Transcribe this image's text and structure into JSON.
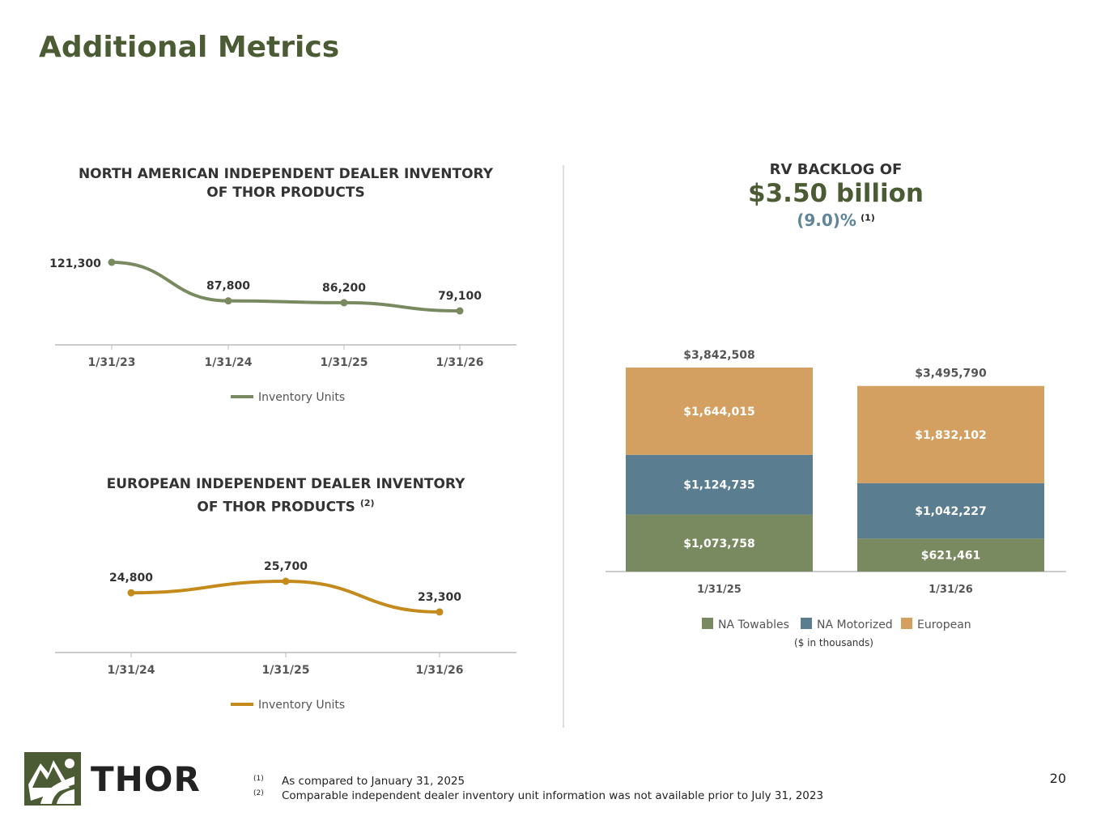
{
  "title": "Additional Metrics",
  "page_number": "20",
  "logo_text": "THOR",
  "backlog": {
    "heading": "RV BACKLOG OF",
    "amount": "$3.50 billion",
    "change": "(9.0)%",
    "change_note": "(1)",
    "units_note": "($ in thousands)"
  },
  "footnotes": [
    {
      "mark": "(1)",
      "text": "As compared to January 31, 2025"
    },
    {
      "mark": "(2)",
      "text": "Comparable independent dealer inventory unit information was not available prior to July 31, 2023"
    }
  ],
  "colors": {
    "na_line": "#7a8a60",
    "eu_line": "#c48a1c",
    "towables": "#7a8a60",
    "motorized": "#5a7d8f",
    "european": "#d4a062",
    "title": "#4b5b33"
  },
  "chart_data": [
    {
      "type": "line",
      "title_line1": "NORTH AMERICAN INDEPENDENT DEALER INVENTORY",
      "title_line2": "OF THOR PRODUCTS",
      "categories": [
        "1/31/23",
        "1/31/24",
        "1/31/25",
        "1/31/26"
      ],
      "values": [
        121300,
        87800,
        86200,
        79100
      ],
      "labels": [
        "121,300",
        "87,800",
        "86,200",
        "79,100"
      ],
      "legend": "Inventory Units"
    },
    {
      "type": "line",
      "title_line1": "EUROPEAN INDEPENDENT DEALER INVENTORY",
      "title_line2": "OF THOR PRODUCTS",
      "title_note": "(2)",
      "categories": [
        "1/31/24",
        "1/31/25",
        "1/31/26"
      ],
      "values": [
        24800,
        25700,
        23300
      ],
      "labels": [
        "24,800",
        "25,700",
        "23,300"
      ],
      "legend": "Inventory Units"
    },
    {
      "type": "bar",
      "stacked": true,
      "categories": [
        "1/31/25",
        "1/31/26"
      ],
      "series": [
        {
          "name": "NA Towables",
          "values": [
            1073758,
            621461
          ],
          "labels": [
            "$1,073,758",
            "$621,461"
          ]
        },
        {
          "name": "NA Motorized",
          "values": [
            1124735,
            1042227
          ],
          "labels": [
            "$1,124,735",
            "$1,042,227"
          ]
        },
        {
          "name": "European",
          "values": [
            1644015,
            1832102
          ],
          "labels": [
            "$1,644,015",
            "$1,832,102"
          ]
        }
      ],
      "totals": [
        "$3,842,508",
        "$3,495,790"
      ],
      "total_values": [
        3842508,
        3495790
      ]
    }
  ]
}
